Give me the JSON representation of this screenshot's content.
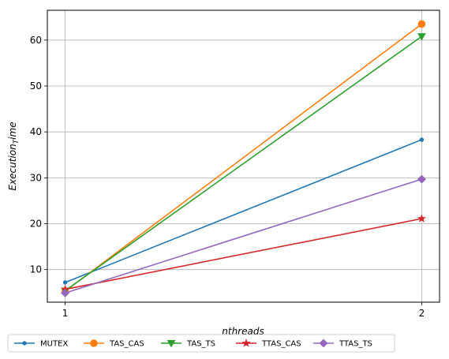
{
  "chart_data": {
    "type": "line",
    "xlabel": "nthreads",
    "ylabel_main": "Execution",
    "ylabel_sub": "T",
    "ylabel_tail": "ime",
    "x": [
      1,
      2
    ],
    "xticks": [
      "1",
      "2"
    ],
    "yticks": [
      10,
      20,
      30,
      40,
      50,
      60
    ],
    "ylim": [
      2.9,
      66.5
    ],
    "xlim": [
      0.95,
      2.05
    ],
    "grid": true,
    "legend_position": "bottom",
    "series": [
      {
        "name": "MUTEX",
        "values": [
          7.2,
          38.3
        ],
        "color": "#1f77b4",
        "marker": "dot"
      },
      {
        "name": "TAS_CAS",
        "values": [
          5.3,
          63.5
        ],
        "color": "#ff7f0e",
        "marker": "circle"
      },
      {
        "name": "TAS_TS",
        "values": [
          5.4,
          60.8
        ],
        "color": "#2ca02c",
        "marker": "triangle-down"
      },
      {
        "name": "TTAS_CAS",
        "values": [
          5.7,
          21.1
        ],
        "color": "#d62728",
        "marker": "star"
      },
      {
        "name": "TTAS_TS",
        "values": [
          4.9,
          29.7
        ],
        "color": "#9467bd",
        "marker": "diamond"
      }
    ]
  }
}
